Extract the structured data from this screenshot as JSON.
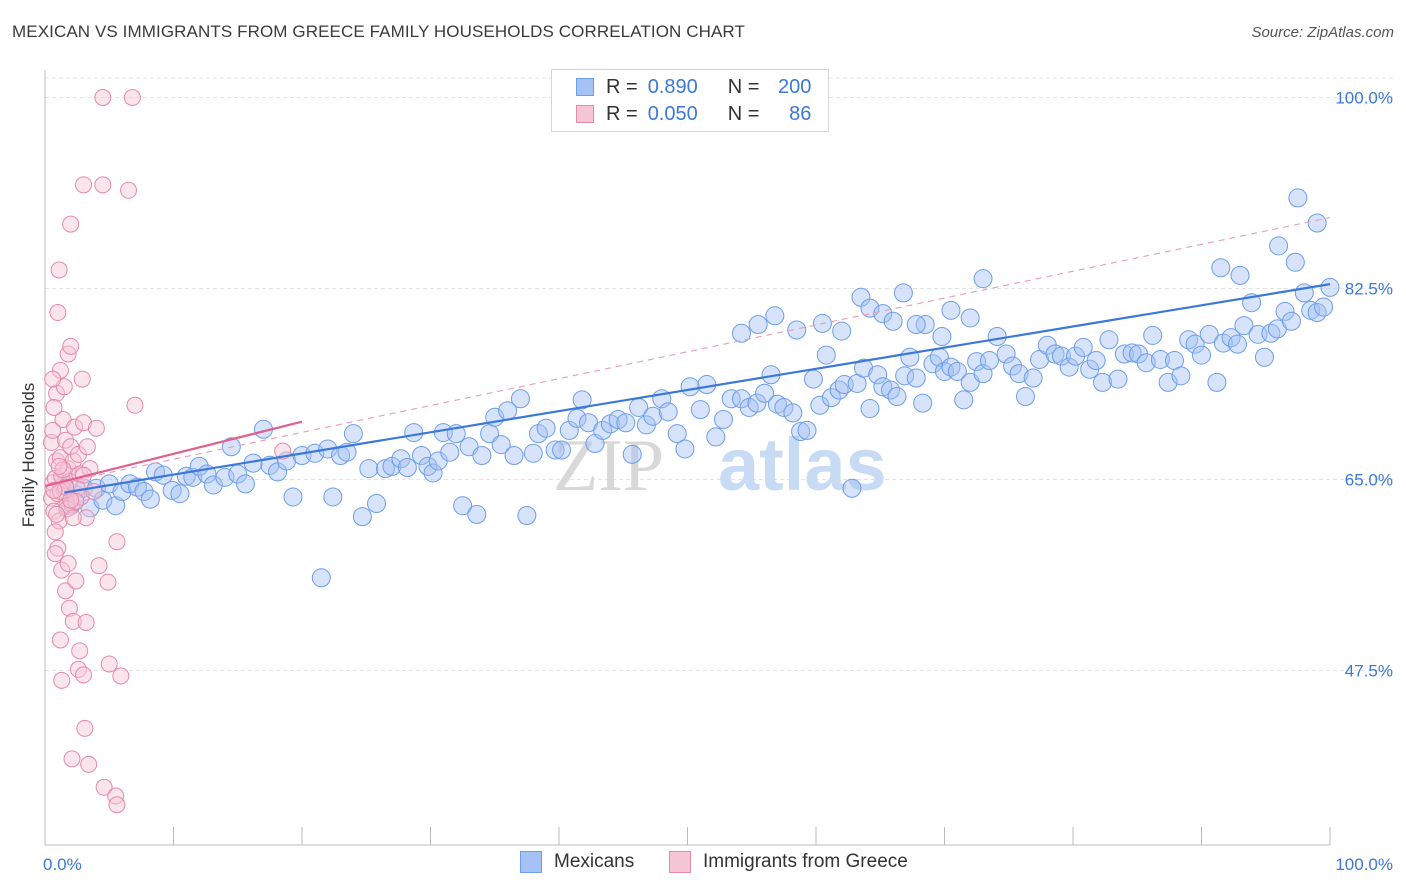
{
  "title": "MEXICAN VS IMMIGRANTS FROM GREECE FAMILY HOUSEHOLDS CORRELATION CHART",
  "source": "Source: ZipAtlas.com",
  "watermark": {
    "zip": "ZIP",
    "atlas": "atlas"
  },
  "legend": {
    "r_label": "R =",
    "n_label": "N =",
    "rows": [
      {
        "r": "0.890",
        "n": "200",
        "color": "#a4c2f4",
        "border": "#6d9eeb"
      },
      {
        "r": "0.050",
        "n": "86",
        "color": "#f7c6d6",
        "border": "#e58aa8"
      }
    ]
  },
  "bottom_legend": [
    {
      "label": "Mexicans",
      "color": "#a4c2f4",
      "border": "#6d9eeb"
    },
    {
      "label": "Immigrants from Greece",
      "color": "#f7c6d6",
      "border": "#e58aa8"
    }
  ],
  "chart_data": {
    "type": "scatter",
    "title": "MEXICAN VS IMMIGRANTS FROM GREECE FAMILY HOUSEHOLDS CORRELATION CHART",
    "xlabel": "",
    "ylabel": "Family Households",
    "xlim": [
      0,
      100
    ],
    "ylim": [
      29,
      102
    ],
    "x_tick_labels": [
      "0.0%",
      "100.0%"
    ],
    "y_ticks": [
      47.5,
      65.0,
      82.5,
      100.0
    ],
    "y_tick_labels": [
      "47.5%",
      "65.0%",
      "82.5%",
      "100.0%"
    ],
    "grid": true,
    "colors": {
      "mexicans": "#3b78d8",
      "greece": "#e0608f",
      "axis_text": "#3b78d8"
    },
    "series": [
      {
        "name": "Mexicans",
        "r": 0.89,
        "n": 200,
        "trend": [
          [
            1.5,
            63.8
          ],
          [
            100,
            82.9
          ]
        ],
        "points": [
          [
            1.5,
            64.5
          ],
          [
            2.0,
            62.6
          ],
          [
            2.4,
            63.6
          ],
          [
            3.0,
            64.2
          ],
          [
            3.5,
            62.4
          ],
          [
            4.0,
            64.2
          ],
          [
            4.5,
            63.1
          ],
          [
            5.0,
            64.6
          ],
          [
            5.5,
            62.6
          ],
          [
            6.0,
            63.9
          ],
          [
            6.6,
            64.6
          ],
          [
            7.2,
            64.3
          ],
          [
            7.7,
            63.9
          ],
          [
            8.2,
            63.2
          ],
          [
            8.6,
            65.7
          ],
          [
            9.2,
            65.4
          ],
          [
            9.9,
            64.0
          ],
          [
            10.5,
            63.7
          ],
          [
            11.0,
            65.3
          ],
          [
            11.5,
            65.2
          ],
          [
            12.0,
            66.2
          ],
          [
            12.6,
            65.5
          ],
          [
            13.1,
            64.5
          ],
          [
            14.0,
            65.2
          ],
          [
            14.5,
            68.0
          ],
          [
            15.0,
            65.5
          ],
          [
            15.6,
            64.6
          ],
          [
            16.2,
            66.5
          ],
          [
            17.0,
            69.6
          ],
          [
            17.5,
            66.3
          ],
          [
            18.1,
            65.7
          ],
          [
            18.8,
            66.7
          ],
          [
            19.3,
            63.4
          ],
          [
            20.0,
            67.2
          ],
          [
            21.0,
            67.4
          ],
          [
            21.5,
            56.0
          ],
          [
            22.0,
            67.8
          ],
          [
            22.4,
            63.4
          ],
          [
            23.0,
            67.2
          ],
          [
            23.5,
            67.5
          ],
          [
            24.0,
            69.2
          ],
          [
            24.7,
            61.6
          ],
          [
            25.2,
            66.0
          ],
          [
            25.8,
            62.8
          ],
          [
            26.5,
            66.0
          ],
          [
            27.0,
            66.2
          ],
          [
            27.7,
            66.9
          ],
          [
            28.2,
            66.1
          ],
          [
            28.7,
            69.3
          ],
          [
            29.3,
            67.2
          ],
          [
            29.8,
            66.2
          ],
          [
            30.2,
            65.6
          ],
          [
            30.6,
            66.7
          ],
          [
            31.0,
            69.3
          ],
          [
            31.5,
            67.5
          ],
          [
            32.0,
            69.2
          ],
          [
            32.5,
            62.6
          ],
          [
            33.0,
            68.0
          ],
          [
            33.6,
            61.8
          ],
          [
            34.0,
            67.2
          ],
          [
            34.6,
            69.2
          ],
          [
            35.0,
            70.7
          ],
          [
            35.5,
            68.2
          ],
          [
            36.0,
            71.3
          ],
          [
            36.5,
            67.2
          ],
          [
            37.0,
            72.4
          ],
          [
            37.5,
            61.7
          ],
          [
            38.0,
            67.4
          ],
          [
            38.4,
            69.2
          ],
          [
            39.0,
            69.7
          ],
          [
            39.7,
            67.7
          ],
          [
            40.2,
            67.7
          ],
          [
            40.8,
            69.5
          ],
          [
            41.4,
            70.6
          ],
          [
            41.8,
            72.3
          ],
          [
            42.3,
            70.2
          ],
          [
            42.8,
            68.3
          ],
          [
            43.4,
            69.5
          ],
          [
            44.0,
            70.1
          ],
          [
            44.6,
            70.5
          ],
          [
            45.2,
            70.2
          ],
          [
            45.7,
            67.3
          ],
          [
            46.2,
            71.6
          ],
          [
            46.8,
            70.0
          ],
          [
            47.3,
            70.8
          ],
          [
            48.0,
            72.4
          ],
          [
            48.5,
            71.2
          ],
          [
            49.2,
            69.2
          ],
          [
            49.8,
            67.8
          ],
          [
            50.2,
            73.5
          ],
          [
            51.0,
            71.4
          ],
          [
            51.5,
            73.7
          ],
          [
            52.2,
            68.9
          ],
          [
            52.8,
            70.5
          ],
          [
            53.4,
            72.4
          ],
          [
            54.2,
            72.4
          ],
          [
            54.8,
            71.6
          ],
          [
            55.4,
            72.0
          ],
          [
            56.0,
            72.9
          ],
          [
            56.5,
            74.6
          ],
          [
            57.0,
            71.9
          ],
          [
            57.5,
            71.6
          ],
          [
            58.2,
            71.1
          ],
          [
            58.8,
            69.4
          ],
          [
            59.3,
            69.5
          ],
          [
            59.8,
            74.2
          ],
          [
            60.3,
            71.8
          ],
          [
            60.8,
            76.4
          ],
          [
            61.2,
            72.5
          ],
          [
            61.8,
            73.2
          ],
          [
            62.2,
            73.7
          ],
          [
            62.8,
            64.2
          ],
          [
            63.2,
            73.8
          ],
          [
            63.7,
            75.2
          ],
          [
            64.2,
            71.5
          ],
          [
            64.8,
            74.6
          ],
          [
            65.2,
            73.5
          ],
          [
            65.8,
            73.2
          ],
          [
            66.3,
            72.6
          ],
          [
            66.9,
            74.5
          ],
          [
            67.3,
            76.2
          ],
          [
            67.8,
            74.3
          ],
          [
            68.3,
            72.0
          ],
          [
            69.1,
            75.6
          ],
          [
            69.6,
            76.2
          ],
          [
            70.0,
            74.9
          ],
          [
            70.5,
            75.3
          ],
          [
            71.0,
            74.9
          ],
          [
            71.5,
            72.3
          ],
          [
            72.0,
            73.9
          ],
          [
            72.5,
            75.8
          ],
          [
            73.0,
            74.7
          ],
          [
            73.5,
            75.9
          ],
          [
            74.1,
            78.1
          ],
          [
            74.8,
            76.5
          ],
          [
            75.3,
            75.4
          ],
          [
            75.8,
            74.7
          ],
          [
            76.3,
            72.6
          ],
          [
            76.9,
            74.3
          ],
          [
            77.4,
            76.0
          ],
          [
            78.0,
            77.3
          ],
          [
            78.6,
            76.5
          ],
          [
            79.1,
            76.3
          ],
          [
            79.7,
            75.3
          ],
          [
            80.2,
            76.3
          ],
          [
            80.8,
            77.1
          ],
          [
            81.3,
            75.1
          ],
          [
            81.8,
            75.9
          ],
          [
            82.3,
            73.9
          ],
          [
            82.8,
            77.8
          ],
          [
            83.5,
            74.2
          ],
          [
            84.0,
            76.5
          ],
          [
            84.6,
            76.6
          ],
          [
            85.1,
            76.5
          ],
          [
            85.7,
            75.7
          ],
          [
            86.2,
            78.2
          ],
          [
            86.8,
            76.0
          ],
          [
            87.4,
            73.9
          ],
          [
            87.9,
            75.9
          ],
          [
            88.4,
            74.5
          ],
          [
            89.0,
            77.8
          ],
          [
            89.5,
            77.4
          ],
          [
            90.0,
            76.4
          ],
          [
            90.6,
            78.3
          ],
          [
            91.2,
            73.9
          ],
          [
            91.7,
            77.5
          ],
          [
            92.3,
            78.0
          ],
          [
            92.8,
            77.4
          ],
          [
            93.3,
            79.1
          ],
          [
            93.9,
            81.2
          ],
          [
            94.4,
            78.3
          ],
          [
            94.9,
            76.2
          ],
          [
            95.4,
            78.4
          ],
          [
            95.9,
            78.8
          ],
          [
            96.5,
            80.4
          ],
          [
            97.0,
            79.5
          ],
          [
            97.5,
            90.8
          ],
          [
            98.0,
            82.1
          ],
          [
            98.5,
            80.5
          ],
          [
            99.0,
            80.3
          ],
          [
            99.5,
            80.8
          ],
          [
            96.0,
            86.4
          ],
          [
            97.3,
            84.9
          ],
          [
            99.0,
            88.5
          ],
          [
            100.0,
            82.6
          ],
          [
            93.0,
            83.7
          ],
          [
            91.5,
            84.4
          ],
          [
            73.0,
            83.4
          ],
          [
            66.8,
            82.1
          ],
          [
            68.5,
            79.2
          ],
          [
            70.5,
            80.5
          ],
          [
            72.0,
            79.8
          ],
          [
            63.5,
            81.7
          ],
          [
            56.8,
            80.0
          ],
          [
            60.5,
            79.3
          ],
          [
            54.2,
            78.4
          ],
          [
            55.5,
            79.2
          ],
          [
            58.5,
            78.7
          ],
          [
            62.0,
            78.6
          ],
          [
            64.2,
            80.7
          ],
          [
            65.2,
            80.2
          ],
          [
            66.0,
            79.5
          ],
          [
            67.8,
            79.2
          ],
          [
            69.8,
            78.1
          ]
        ]
      },
      {
        "name": "Immigrants from Greece",
        "r": 0.05,
        "n": 86,
        "trend": [
          [
            0,
            64.4
          ],
          [
            20,
            70.3
          ]
        ],
        "trend_extended": [
          [
            0,
            64.4
          ],
          [
            100,
            89.0
          ]
        ],
        "points": [
          [
            0.5,
            63.3
          ],
          [
            0.6,
            64.7
          ],
          [
            0.7,
            62.1
          ],
          [
            0.8,
            65.1
          ],
          [
            0.9,
            66.7
          ],
          [
            1.0,
            63.7
          ],
          [
            0.5,
            68.4
          ],
          [
            1.1,
            61.2
          ],
          [
            1.2,
            67.0
          ],
          [
            1.3,
            65.3
          ],
          [
            0.6,
            69.5
          ],
          [
            0.8,
            60.2
          ],
          [
            1.5,
            64.0
          ],
          [
            1.6,
            68.6
          ],
          [
            1.7,
            62.6
          ],
          [
            0.9,
            72.9
          ],
          [
            1.0,
            58.7
          ],
          [
            1.4,
            70.5
          ],
          [
            1.8,
            66.0
          ],
          [
            1.9,
            64.8
          ],
          [
            2.0,
            68.0
          ],
          [
            2.1,
            62.7
          ],
          [
            1.2,
            75.0
          ],
          [
            1.3,
            56.7
          ],
          [
            2.2,
            66.7
          ],
          [
            2.3,
            69.8
          ],
          [
            0.7,
            71.6
          ],
          [
            1.5,
            73.5
          ],
          [
            1.6,
            54.8
          ],
          [
            2.5,
            64.2
          ],
          [
            2.6,
            67.3
          ],
          [
            1.8,
            76.5
          ],
          [
            1.9,
            53.2
          ],
          [
            2.0,
            77.2
          ],
          [
            2.2,
            52.0
          ],
          [
            0.6,
            74.2
          ],
          [
            0.8,
            58.2
          ],
          [
            2.7,
            65.5
          ],
          [
            2.8,
            63.4
          ],
          [
            3.0,
            70.2
          ],
          [
            3.2,
            61.5
          ],
          [
            1.0,
            80.3
          ],
          [
            1.2,
            50.3
          ],
          [
            3.3,
            68.0
          ],
          [
            3.5,
            66.0
          ],
          [
            1.1,
            84.2
          ],
          [
            1.3,
            46.6
          ],
          [
            2.0,
            88.4
          ],
          [
            2.1,
            39.4
          ],
          [
            3.8,
            63.9
          ],
          [
            4.0,
            69.7
          ],
          [
            4.2,
            57.1
          ],
          [
            1.8,
            57.3
          ],
          [
            2.4,
            55.7
          ],
          [
            2.6,
            47.6
          ],
          [
            2.7,
            49.3
          ],
          [
            3.0,
            47.1
          ],
          [
            3.2,
            51.9
          ],
          [
            2.9,
            74.2
          ],
          [
            3.1,
            42.2
          ],
          [
            3.0,
            92.0
          ],
          [
            3.4,
            38.9
          ],
          [
            4.5,
            100.0
          ],
          [
            4.6,
            36.8
          ],
          [
            4.5,
            92.0
          ],
          [
            5.5,
            36.0
          ],
          [
            5.6,
            35.2
          ],
          [
            6.5,
            91.5
          ],
          [
            6.8,
            100.0
          ],
          [
            5.9,
            47.0
          ],
          [
            4.9,
            55.6
          ],
          [
            5.0,
            48.1
          ],
          [
            7.0,
            71.8
          ],
          [
            5.6,
            59.3
          ],
          [
            1.7,
            62.3
          ],
          [
            2.4,
            63.0
          ],
          [
            2.2,
            61.5
          ],
          [
            3.0,
            65.4
          ],
          [
            18.5,
            67.6
          ],
          [
            1.2,
            63.9
          ],
          [
            0.9,
            61.8
          ],
          [
            1.4,
            65.9
          ],
          [
            1.6,
            64.3
          ],
          [
            2.0,
            63.1
          ],
          [
            0.7,
            64.0
          ],
          [
            1.1,
            66.2
          ]
        ]
      }
    ]
  }
}
